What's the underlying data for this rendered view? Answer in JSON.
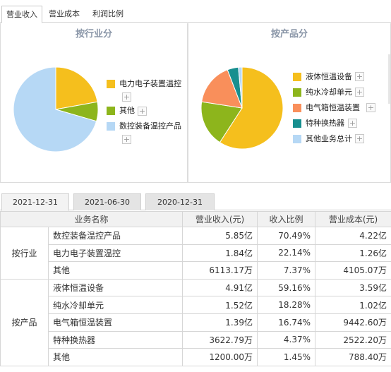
{
  "top_tabs": [
    "营业收入",
    "营业成本",
    "利润比例"
  ],
  "panels": {
    "left": {
      "title": "按行业分",
      "legend": [
        {
          "label": "电力电子装置温控",
          "color": "#f5bf1d"
        },
        {
          "label": "其他",
          "color": "#8db51c"
        },
        {
          "label": "数控装备温控产品",
          "color": "#b6d8f5"
        }
      ],
      "pie": [
        {
          "label": "数控装备温控产品",
          "value": 70.49,
          "color": "#b6d8f5"
        },
        {
          "label": "电力电子装置温控",
          "value": 22.14,
          "color": "#f5bf1d"
        },
        {
          "label": "其他",
          "value": 7.37,
          "color": "#8db51c"
        }
      ]
    },
    "right": {
      "title": "按产品分",
      "legend": [
        {
          "label": "液体恒温设备",
          "color": "#f5bf1d"
        },
        {
          "label": "纯水冷却单元",
          "color": "#8db51c"
        },
        {
          "label": "电气箱恒温装置",
          "color": "#f98f5b"
        },
        {
          "label": "特种换热器",
          "color": "#178f8f"
        },
        {
          "label": "其他业务总计",
          "color": "#b6d8f5"
        }
      ],
      "pie": [
        {
          "label": "液体恒温设备",
          "value": 59.16,
          "color": "#f5bf1d"
        },
        {
          "label": "纯水冷却单元",
          "value": 18.28,
          "color": "#8db51c"
        },
        {
          "label": "电气箱恒温装置",
          "value": 16.74,
          "color": "#f98f5b"
        },
        {
          "label": "特种换热器",
          "value": 4.37,
          "color": "#178f8f"
        },
        {
          "label": "其他业务总计",
          "value": 1.45,
          "color": "#b6d8f5"
        }
      ]
    }
  },
  "plus_glyph": "+",
  "date_tabs": [
    "2021-12-31",
    "2021-06-30",
    "2020-12-31"
  ],
  "table": {
    "headers": [
      "业务名称",
      "营业收入(元)",
      "收入比例",
      "营业成本(元)"
    ],
    "groups": [
      {
        "name": "按行业",
        "rows": [
          {
            "name": "数控装备温控产品",
            "revenue": "5.85亿",
            "ratio": "70.49%",
            "cost": "4.22亿"
          },
          {
            "name": "电力电子装置温控",
            "revenue": "1.84亿",
            "ratio": "22.14%",
            "cost": "1.26亿"
          },
          {
            "name": "其他",
            "revenue": "6113.17万",
            "ratio": "7.37%",
            "cost": "4105.07万"
          }
        ]
      },
      {
        "name": "按产品",
        "rows": [
          {
            "name": "液体恒温设备",
            "revenue": "4.91亿",
            "ratio": "59.16%",
            "cost": "3.59亿"
          },
          {
            "name": "纯水冷却单元",
            "revenue": "1.52亿",
            "ratio": "18.28%",
            "cost": "1.02亿"
          },
          {
            "name": "电气箱恒温装置",
            "revenue": "1.39亿",
            "ratio": "16.74%",
            "cost": "9442.60万"
          },
          {
            "name": "特种换热器",
            "revenue": "3622.79万",
            "ratio": "4.37%",
            "cost": "2522.20万"
          },
          {
            "name": "其他",
            "revenue": "1200.00万",
            "ratio": "1.45%",
            "cost": "788.40万"
          }
        ]
      }
    ]
  }
}
